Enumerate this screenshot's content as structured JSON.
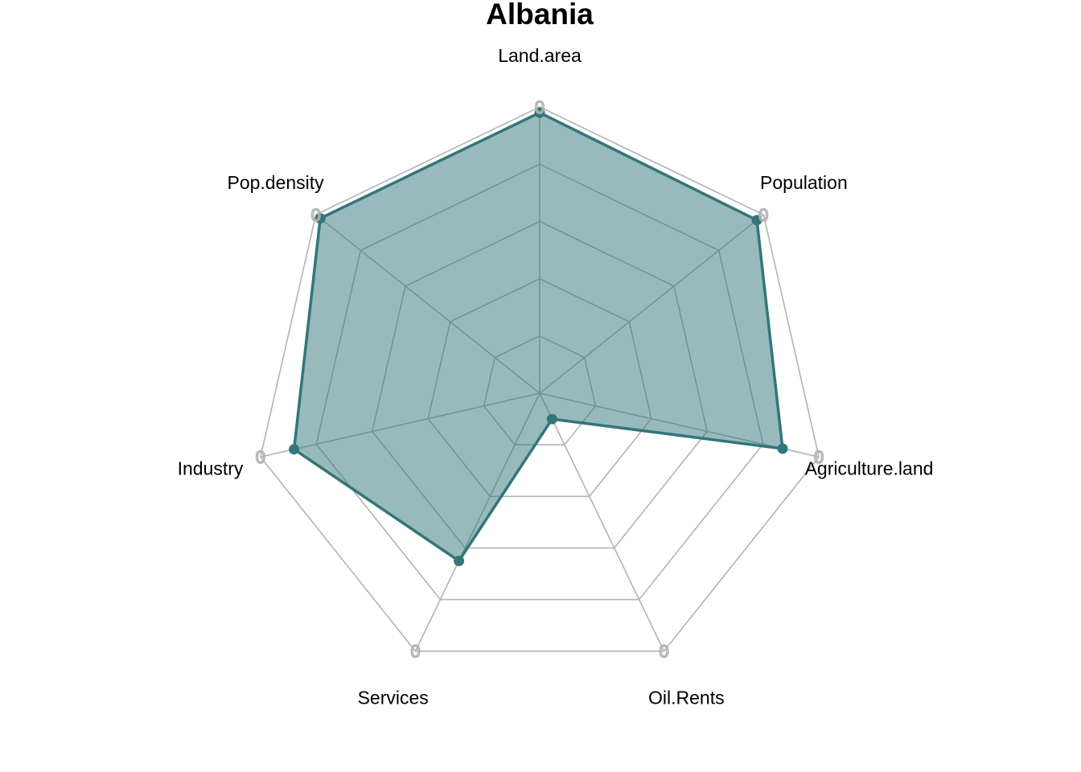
{
  "chart_data": {
    "type": "radar",
    "title": "Albania",
    "axes": [
      "Land.area",
      "Population",
      "Agriculture.land",
      "Oil.Rents",
      "Services",
      "Industry",
      "Pop.density"
    ],
    "series": [
      {
        "values": [
          0.98,
          0.97,
          0.87,
          0.1,
          0.65,
          0.88,
          0.98
        ]
      }
    ],
    "range": [
      0,
      1
    ],
    "grid_levels": 5,
    "tick_labels": [
      "0",
      "0",
      "0",
      "0",
      "0",
      "0",
      "0"
    ],
    "colors": {
      "series_line": "#32767a",
      "series_fill": "#32767a",
      "series_fill_opacity": 0.5,
      "grid_line": "#b3b3b3",
      "tick_label": "#b3b3b3"
    },
    "grid": true,
    "legend": "none"
  }
}
